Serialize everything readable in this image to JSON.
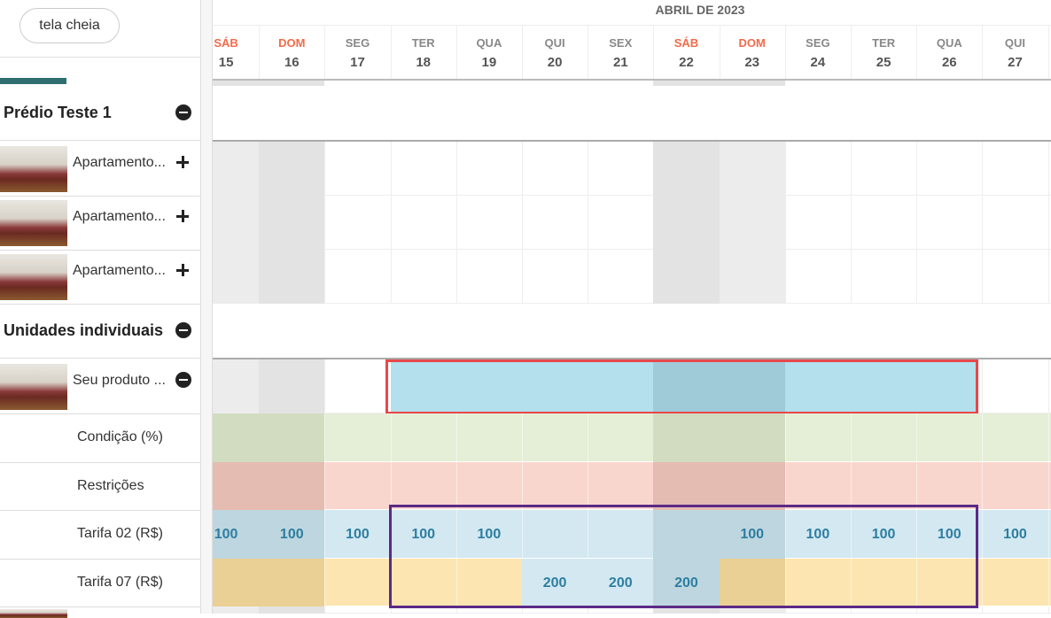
{
  "button": "tela cheia",
  "calendar": {
    "month": "ABRIL DE 2023",
    "days": [
      {
        "weekday": "SÁB",
        "day": 15,
        "weekend": true
      },
      {
        "weekday": "DOM",
        "day": 16,
        "weekend": true
      },
      {
        "weekday": "SEG",
        "day": 17
      },
      {
        "weekday": "TER",
        "day": 18
      },
      {
        "weekday": "QUA",
        "day": 19
      },
      {
        "weekday": "QUI",
        "day": 20
      },
      {
        "weekday": "SEX",
        "day": 21
      },
      {
        "weekday": "SÁB",
        "day": 22,
        "weekend": true
      },
      {
        "weekday": "DOM",
        "day": 23,
        "weekend": true
      },
      {
        "weekday": "SEG",
        "day": 24
      },
      {
        "weekday": "TER",
        "day": 25
      },
      {
        "weekday": "QUA",
        "day": 26
      },
      {
        "weekday": "QUI",
        "day": 27
      }
    ]
  },
  "groups": [
    {
      "name": "Prédio Teste 1",
      "units": [
        "Apartamento...",
        "Apartamento...",
        "Apartamento..."
      ]
    },
    {
      "name": "Unidades individuais",
      "units": [
        "Seu produto ..."
      ]
    }
  ],
  "rows": [
    {
      "label": "Condição (%)",
      "color": "#e5eed6",
      "weekend_color": "#d2dcc0"
    },
    {
      "label": "Restrições",
      "color": "#f9d6cd",
      "weekend_color": "#e5bcb2"
    },
    {
      "label": "Tarifa 02 (R$)",
      "color": "#d3e8f1",
      "weekend_color": "#bed6df",
      "values": [
        100,
        100,
        100,
        100,
        100,
        null,
        null,
        null,
        100,
        100,
        100,
        100,
        100
      ]
    },
    {
      "label": "Tarifa 07 (R$)",
      "color": "#fce5b1",
      "weekend_color": "#ead095",
      "values": [
        null,
        null,
        null,
        null,
        null,
        200,
        200,
        200,
        null,
        null,
        null,
        null,
        null
      ]
    }
  ]
}
